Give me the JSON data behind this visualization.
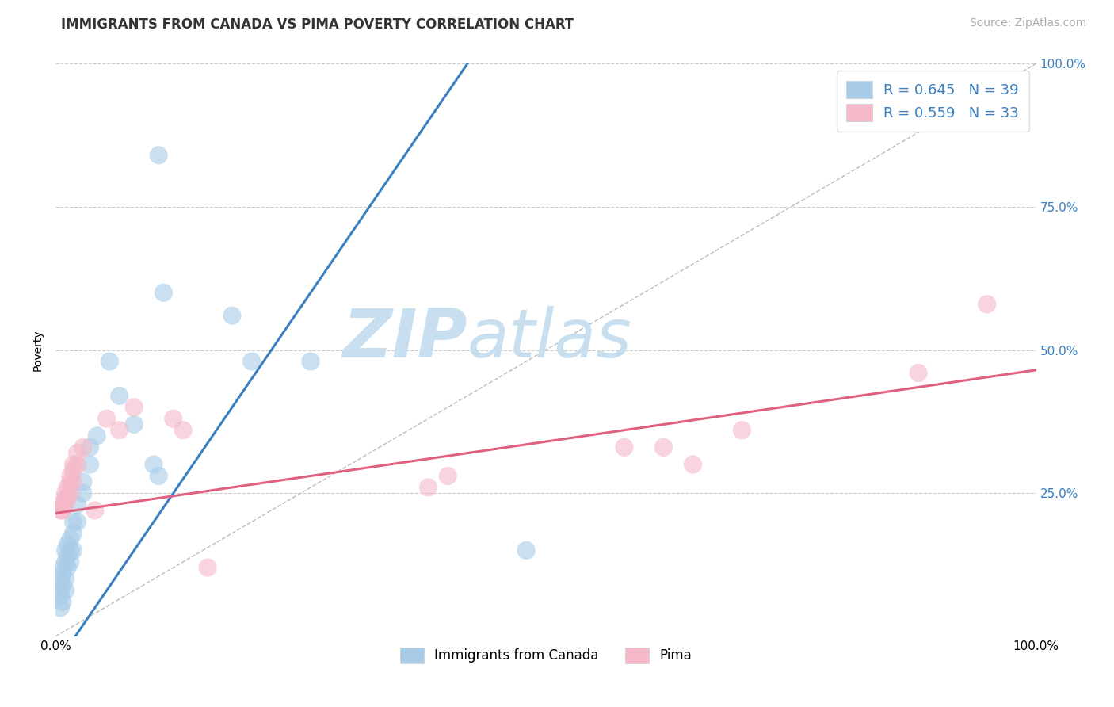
{
  "title": "IMMIGRANTS FROM CANADA VS PIMA POVERTY CORRELATION CHART",
  "source_text": "Source: ZipAtlas.com",
  "ylabel": "Poverty",
  "xlim": [
    0,
    1.0
  ],
  "ylim": [
    0,
    1.0
  ],
  "blue_R": 0.645,
  "blue_N": 39,
  "pink_R": 0.559,
  "pink_N": 33,
  "blue_scatter": [
    [
      0.005,
      0.05
    ],
    [
      0.005,
      0.07
    ],
    [
      0.005,
      0.08
    ],
    [
      0.005,
      0.1
    ],
    [
      0.007,
      0.06
    ],
    [
      0.007,
      0.09
    ],
    [
      0.007,
      0.11
    ],
    [
      0.007,
      0.12
    ],
    [
      0.01,
      0.08
    ],
    [
      0.01,
      0.1
    ],
    [
      0.01,
      0.13
    ],
    [
      0.01,
      0.15
    ],
    [
      0.012,
      0.12
    ],
    [
      0.012,
      0.14
    ],
    [
      0.012,
      0.16
    ],
    [
      0.015,
      0.13
    ],
    [
      0.015,
      0.15
    ],
    [
      0.015,
      0.17
    ],
    [
      0.018,
      0.15
    ],
    [
      0.018,
      0.18
    ],
    [
      0.018,
      0.2
    ],
    [
      0.022,
      0.2
    ],
    [
      0.022,
      0.23
    ],
    [
      0.028,
      0.25
    ],
    [
      0.028,
      0.27
    ],
    [
      0.035,
      0.3
    ],
    [
      0.035,
      0.33
    ],
    [
      0.042,
      0.35
    ],
    [
      0.055,
      0.48
    ],
    [
      0.065,
      0.42
    ],
    [
      0.08,
      0.37
    ],
    [
      0.1,
      0.3
    ],
    [
      0.105,
      0.28
    ],
    [
      0.11,
      0.6
    ],
    [
      0.18,
      0.56
    ],
    [
      0.2,
      0.48
    ],
    [
      0.26,
      0.48
    ],
    [
      0.48,
      0.15
    ],
    [
      0.105,
      0.84
    ]
  ],
  "pink_scatter": [
    [
      0.005,
      0.22
    ],
    [
      0.005,
      0.23
    ],
    [
      0.007,
      0.22
    ],
    [
      0.007,
      0.23
    ],
    [
      0.01,
      0.23
    ],
    [
      0.01,
      0.24
    ],
    [
      0.01,
      0.25
    ],
    [
      0.012,
      0.24
    ],
    [
      0.012,
      0.26
    ],
    [
      0.015,
      0.25
    ],
    [
      0.015,
      0.27
    ],
    [
      0.015,
      0.28
    ],
    [
      0.018,
      0.27
    ],
    [
      0.018,
      0.29
    ],
    [
      0.018,
      0.3
    ],
    [
      0.022,
      0.3
    ],
    [
      0.022,
      0.32
    ],
    [
      0.028,
      0.33
    ],
    [
      0.04,
      0.22
    ],
    [
      0.052,
      0.38
    ],
    [
      0.065,
      0.36
    ],
    [
      0.08,
      0.4
    ],
    [
      0.12,
      0.38
    ],
    [
      0.13,
      0.36
    ],
    [
      0.155,
      0.12
    ],
    [
      0.38,
      0.26
    ],
    [
      0.4,
      0.28
    ],
    [
      0.58,
      0.33
    ],
    [
      0.62,
      0.33
    ],
    [
      0.65,
      0.3
    ],
    [
      0.7,
      0.36
    ],
    [
      0.88,
      0.46
    ],
    [
      0.95,
      0.58
    ]
  ],
  "blue_line_x": [
    0.0,
    0.42
  ],
  "blue_line_y": [
    -0.05,
    1.0
  ],
  "pink_line_x": [
    0.0,
    1.0
  ],
  "pink_line_y": [
    0.215,
    0.465
  ],
  "diagonal_line_x": [
    0.0,
    1.0
  ],
  "diagonal_line_y": [
    0.0,
    1.0
  ],
  "blue_color": "#a8cce8",
  "pink_color": "#f4b8c8",
  "blue_line_color": "#3a7fc1",
  "pink_line_color": "#e06080",
  "diagonal_line_color": "#bbbbbb",
  "grid_color": "#cccccc",
  "background_color": "#ffffff",
  "watermark_zip": "ZIP",
  "watermark_atlas": "atlas",
  "watermark_color_zip": "#c8dff0",
  "watermark_color_atlas": "#c8dff0",
  "xtick_positions": [
    0.0,
    1.0
  ],
  "xtick_labels": [
    "0.0%",
    "100.0%"
  ],
  "ytick_positions": [
    0.25,
    0.5,
    0.75,
    1.0
  ],
  "ytick_labels": [
    "25.0%",
    "50.0%",
    "75.0%",
    "100.0%"
  ],
  "title_fontsize": 12,
  "axis_label_fontsize": 10,
  "tick_fontsize": 11,
  "legend_fontsize": 13,
  "source_fontsize": 10
}
